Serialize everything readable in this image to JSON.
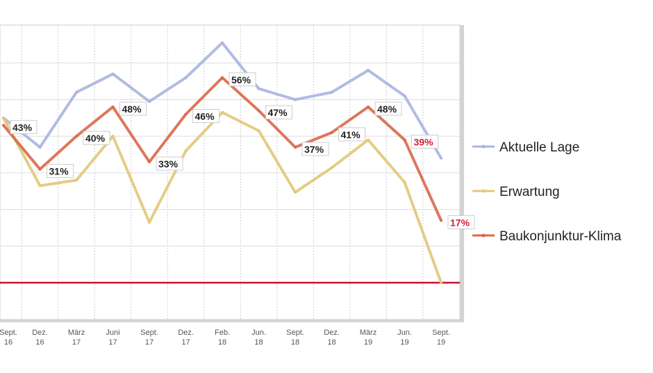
{
  "chart_data": {
    "type": "line",
    "categories": [
      [
        "Sept.",
        "16"
      ],
      [
        "Dez.",
        "16"
      ],
      [
        "März",
        "17"
      ],
      [
        "Juni",
        "17"
      ],
      [
        "Sept.",
        "17"
      ],
      [
        "Dez.",
        "17"
      ],
      [
        "Feb.",
        "18"
      ],
      [
        "Jun.",
        "18"
      ],
      [
        "Sept.",
        "18"
      ],
      [
        "Dez.",
        "18"
      ],
      [
        "März",
        "19"
      ],
      [
        "Jun.",
        "19"
      ],
      [
        "Sept.",
        "19"
      ]
    ],
    "ylim": [
      0,
      70
    ],
    "grid": true,
    "legend_position": "right",
    "reference_line": {
      "value": 0,
      "color": "#c8102e"
    },
    "series": [
      {
        "name": "Aktuelle Lage",
        "color": "#a9b4e0",
        "values": [
          45,
          37,
          52,
          57,
          49.5,
          56,
          65.5,
          53,
          50,
          52,
          58,
          51,
          34
        ]
      },
      {
        "name": "Erwartung",
        "color": "#e0c878",
        "values": [
          45,
          26.5,
          28,
          40,
          16.5,
          36,
          46.5,
          41.5,
          24.7,
          31.4,
          39,
          27.4,
          0
        ]
      },
      {
        "name": "Baukonjunktur-Klima",
        "color": "#d9684a",
        "values": [
          43,
          31,
          40,
          48,
          33,
          46,
          56,
          47,
          37,
          41,
          48,
          39,
          17
        ],
        "data_labels": [
          "43%",
          "31%",
          "40%",
          "48%",
          "33%",
          "46%",
          "56%",
          "47%",
          "37%",
          "41%",
          "48%",
          "39%",
          "17%"
        ],
        "highlighted_labels": [
          11,
          12
        ],
        "highlight_color": "#d0203a"
      }
    ]
  }
}
